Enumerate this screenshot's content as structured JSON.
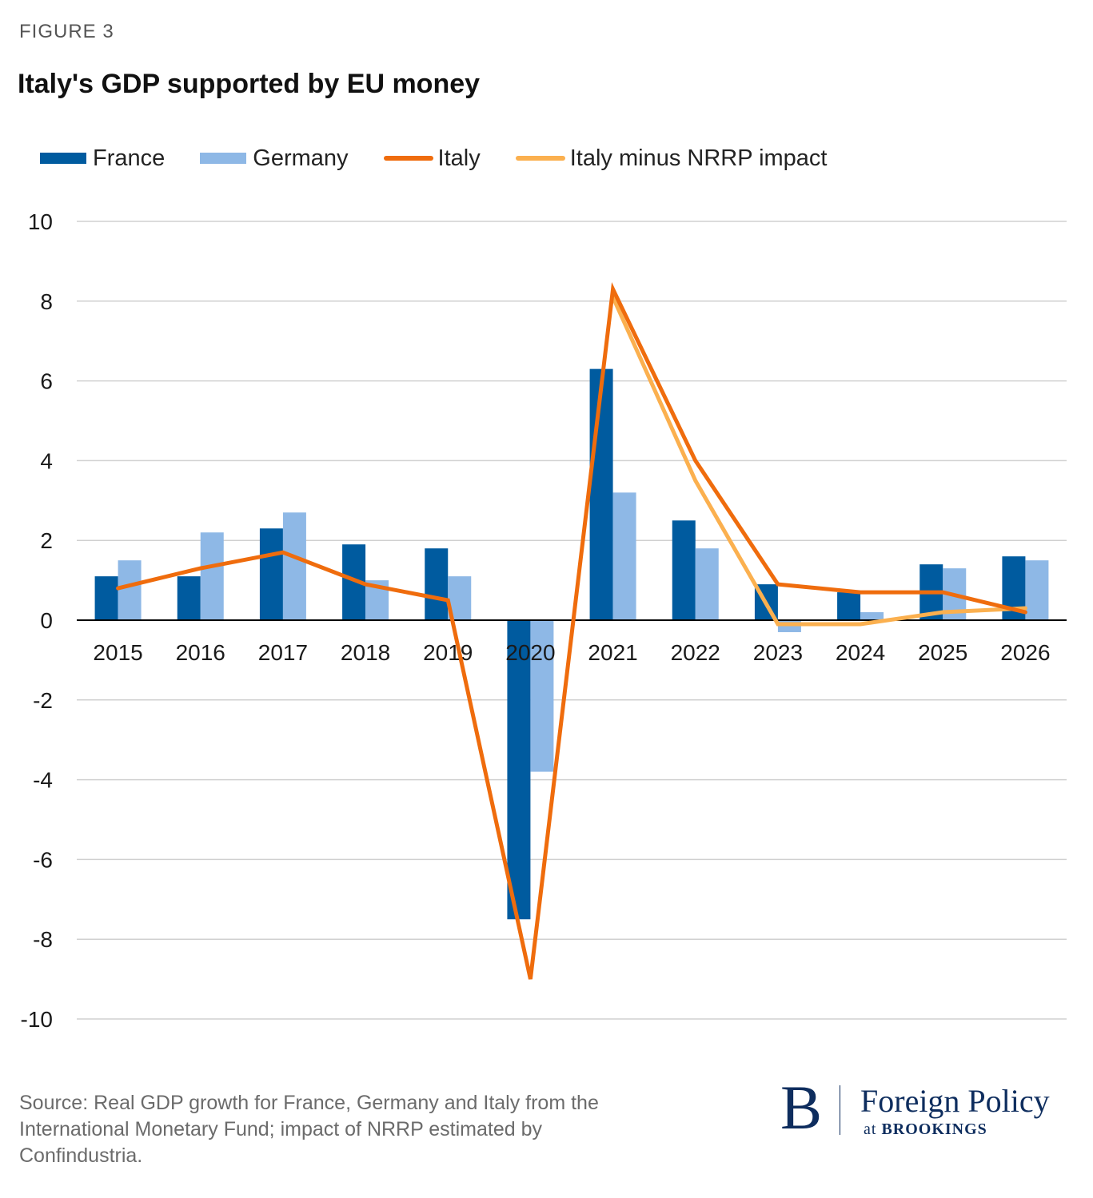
{
  "figure_label": "FIGURE 3",
  "source": {
    "label": "Source:",
    "text": "Real GDP growth for France, Germany and Italy from the International Monetary Fund; impact of NRRP estimated by Confindustria."
  },
  "logo": {
    "mark": "B",
    "name": "Foreign Policy",
    "subname_prefix": "at",
    "subname": "BROOKINGS"
  },
  "colors": {
    "france": "#005b9f",
    "germany": "#8eb8e6",
    "italy": "#ef6c0d",
    "italy_minus_nrrp": "#fbb04f",
    "grid": "#d0d0d0",
    "axis": "#000000"
  },
  "chart_data": {
    "type": "bar",
    "title": "Italy's GDP supported by EU money",
    "categories": [
      "2015",
      "2016",
      "2017",
      "2018",
      "2019",
      "2020",
      "2021",
      "2022",
      "2023",
      "2024",
      "2025",
      "2026"
    ],
    "ylim": [
      -10,
      10
    ],
    "yticks": [
      "10",
      "8",
      "6",
      "4",
      "2",
      "0",
      "-2",
      "-4",
      "-6",
      "-8",
      "-10"
    ],
    "grid": true,
    "legend_position": "top-left",
    "series": [
      {
        "name": "France",
        "type": "bar",
        "values": [
          1.1,
          1.1,
          2.3,
          1.9,
          1.8,
          -7.5,
          6.3,
          2.5,
          0.9,
          0.7,
          1.4,
          1.6
        ]
      },
      {
        "name": "Germany",
        "type": "bar",
        "values": [
          1.5,
          2.2,
          2.7,
          1.0,
          1.1,
          -3.8,
          3.2,
          1.8,
          -0.3,
          0.2,
          1.3,
          1.5
        ]
      },
      {
        "name": "Italy",
        "type": "line",
        "values": [
          0.8,
          1.3,
          1.7,
          0.9,
          0.5,
          -9.0,
          8.3,
          4.0,
          0.9,
          0.7,
          0.7,
          0.2
        ]
      },
      {
        "name": "Italy minus NRRP impact",
        "type": "line",
        "values": [
          null,
          null,
          null,
          null,
          null,
          null,
          8.1,
          3.5,
          -0.1,
          -0.1,
          0.2,
          0.3
        ]
      }
    ]
  }
}
